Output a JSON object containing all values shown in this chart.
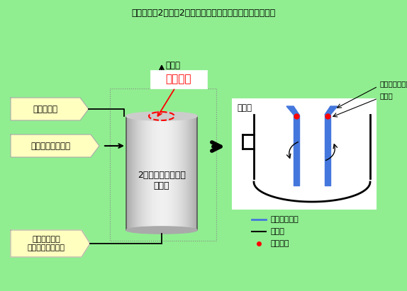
{
  "title": "伊方発電所2号機　2次系ブローダウンタンクまわり概略図",
  "bg_color": "#90EE90",
  "label_spray": "スプレイ水",
  "label_drain": "補助蒸気ドレン水",
  "label_turbine": "タービン建家\n非常用排水ピット",
  "label_atmosphere": "大気へ",
  "label_tank": "2次系ブローダウン\nタンク",
  "label_current": "当該箇所",
  "label_cross": "断面図",
  "label_nozzle": "スプレイノズル",
  "label_inner": "内筒部",
  "legend_stainless": "ステンレス鋼",
  "legend_carbon": "炭素鋼",
  "legend_corrosion": "腐食箇所"
}
